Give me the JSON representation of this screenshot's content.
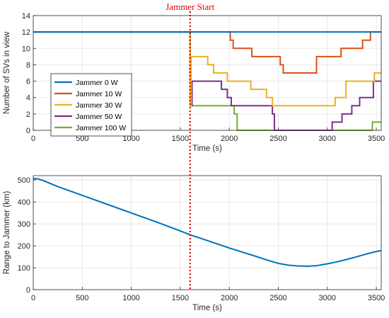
{
  "annotation": {
    "label": "Jammer Start",
    "x": 1600,
    "color": "#e00000"
  },
  "chart_data": [
    {
      "type": "line",
      "step": true,
      "xlabel": "Time (s)",
      "ylabel": "Number of SVs in view",
      "xlim": [
        0,
        3550
      ],
      "ylim": [
        0,
        14
      ],
      "xticks": [
        0,
        500,
        1000,
        1500,
        2000,
        2500,
        3000,
        3500
      ],
      "yticks": [
        0,
        2,
        4,
        6,
        8,
        10,
        12,
        14
      ],
      "grid": true,
      "legend_position": "lower-left",
      "series": [
        {
          "name": "Jammer 0 W",
          "color": "#0072bd",
          "x": [
            0,
            3550
          ],
          "y": [
            12,
            12
          ]
        },
        {
          "name": "Jammer 10 W",
          "color": "#d95319",
          "x": [
            0,
            2010,
            2040,
            2230,
            2520,
            2550,
            2890,
            3140,
            3360,
            3440,
            3550
          ],
          "y": [
            12,
            11,
            10,
            9,
            8,
            7,
            9,
            10,
            11,
            12,
            12
          ]
        },
        {
          "name": "Jammer 30 W",
          "color": "#edb120",
          "x": [
            0,
            1600,
            1610,
            1780,
            1840,
            1980,
            2220,
            2380,
            2440,
            3080,
            3190,
            3480,
            3550
          ],
          "y": [
            12,
            3,
            9,
            8,
            7,
            6,
            5,
            4,
            3,
            4,
            6,
            7,
            7
          ],
          "note": "drops to 3 then steps up to 9 at jammer start"
        },
        {
          "name": "Jammer 50 W",
          "color": "#7e2f8e",
          "x": [
            0,
            1600,
            1620,
            1920,
            1980,
            2020,
            2060,
            2440,
            2460,
            3050,
            3150,
            3250,
            3330,
            3470,
            3550
          ],
          "y": [
            12,
            3,
            6,
            5,
            4,
            3,
            3,
            2,
            0,
            1,
            2,
            3,
            4,
            6,
            6
          ]
        },
        {
          "name": "Jammer 100 W",
          "color": "#77ac30",
          "x": [
            0,
            1600,
            1610,
            2050,
            2080,
            3460,
            3550
          ],
          "y": [
            12,
            6,
            3,
            2,
            0,
            1,
            1
          ]
        }
      ]
    },
    {
      "type": "line",
      "xlabel": "Time (s)",
      "ylabel": "Range to Jammer (km)",
      "xlim": [
        0,
        3550
      ],
      "ylim": [
        0,
        520
      ],
      "xticks": [
        0,
        500,
        1000,
        1500,
        2000,
        2500,
        3000,
        3500
      ],
      "yticks": [
        0,
        100,
        200,
        300,
        400,
        500
      ],
      "grid": true,
      "series": [
        {
          "color": "#0072bd",
          "x": [
            0,
            50,
            100,
            250,
            500,
            750,
            1000,
            1250,
            1500,
            1600,
            1750,
            2000,
            2250,
            2400,
            2500,
            2600,
            2700,
            2800,
            2900,
            3000,
            3100,
            3200,
            3300,
            3400,
            3500,
            3550
          ],
          "y": [
            507,
            505,
            498,
            470,
            430,
            390,
            350,
            310,
            268,
            250,
            228,
            190,
            155,
            133,
            120,
            112,
            108,
            107,
            110,
            118,
            127,
            138,
            150,
            163,
            174,
            178
          ]
        }
      ]
    }
  ]
}
